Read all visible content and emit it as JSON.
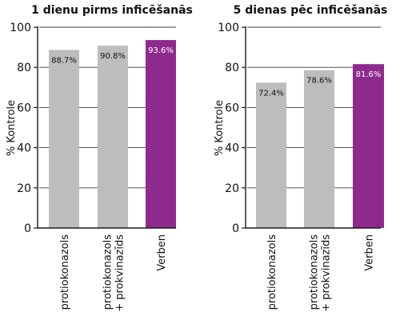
{
  "colors": {
    "bar_default": "#bdbdbf",
    "bar_highlight": "#8e2a8e",
    "axis": "#1a1a1a",
    "grid": "#3a3a3a",
    "text": "#111111",
    "label_on_dark": "#ffffff"
  },
  "chart_data": [
    {
      "type": "bar",
      "title": "1 dienu pirms inficēšanās",
      "ylabel": "% Kontrole",
      "xlabel": "",
      "ylim": [
        0,
        100
      ],
      "yticks": [
        0,
        20,
        40,
        60,
        80,
        100
      ],
      "grid": true,
      "categories": [
        [
          "protiokonazols"
        ],
        [
          "protiokonazols",
          "+ prokvinazīds"
        ],
        [
          "Verben"
        ]
      ],
      "values": [
        88.7,
        90.8,
        93.6
      ],
      "value_labels": [
        "88.7%",
        "90.8%",
        "93.6%"
      ],
      "highlight": [
        false,
        false,
        true
      ]
    },
    {
      "type": "bar",
      "title": "5 dienas pēc inficēšanās",
      "ylabel": "% Kontrole",
      "xlabel": "",
      "ylim": [
        0,
        100
      ],
      "yticks": [
        0,
        20,
        40,
        60,
        80,
        100
      ],
      "grid": true,
      "categories": [
        [
          "protiokonazols"
        ],
        [
          "protiokonazols",
          "+ prokvinazīds"
        ],
        [
          "Verben"
        ]
      ],
      "values": [
        72.4,
        78.6,
        81.6
      ],
      "value_labels": [
        "72.4%",
        "78.6%",
        "81.6%"
      ],
      "highlight": [
        false,
        false,
        true
      ]
    }
  ]
}
